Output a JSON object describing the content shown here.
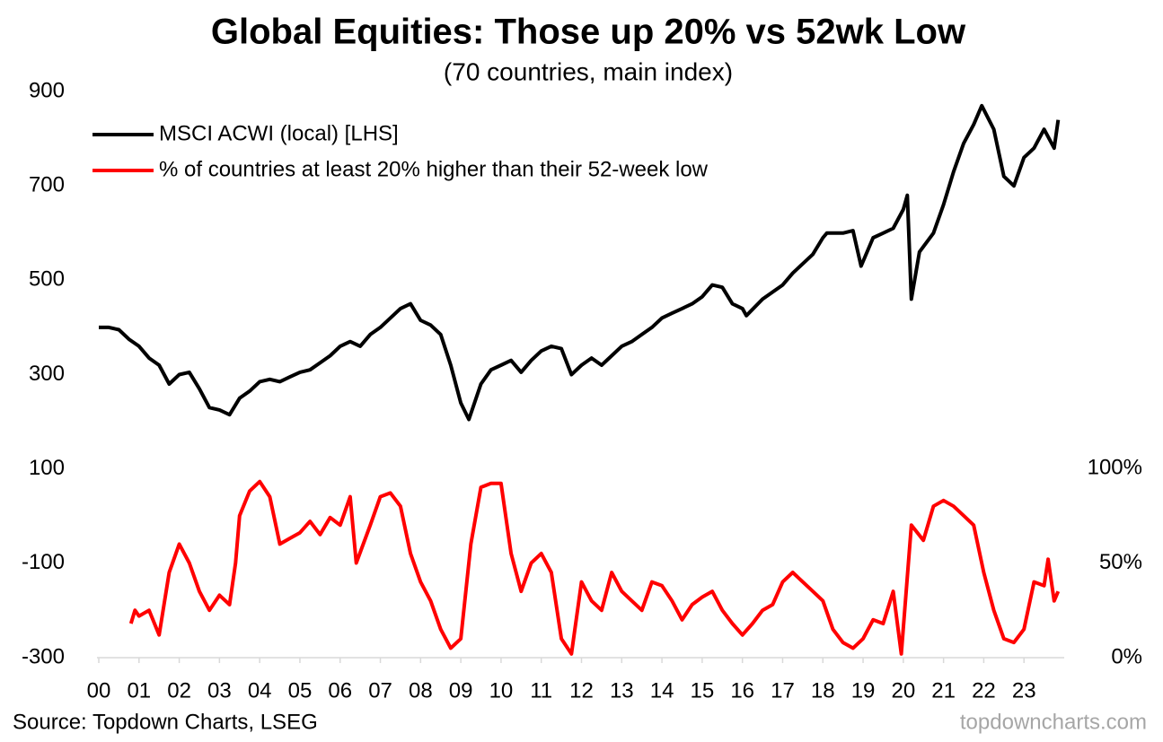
{
  "chart_data": {
    "type": "line",
    "title": "Global Equities: Those up 20% vs 52wk Low",
    "subtitle": "(70 countries, main index)",
    "source": "Source: Topdown Charts, LSEG",
    "watermark": "topdowncharts.com",
    "legend": "top-left",
    "xlim": [
      2000,
      2024
    ],
    "xticks": [
      {
        "value": 2000,
        "label": "00"
      },
      {
        "value": 2001,
        "label": "01"
      },
      {
        "value": 2002,
        "label": "02"
      },
      {
        "value": 2003,
        "label": "03"
      },
      {
        "value": 2004,
        "label": "04"
      },
      {
        "value": 2005,
        "label": "05"
      },
      {
        "value": 2006,
        "label": "06"
      },
      {
        "value": 2007,
        "label": "07"
      },
      {
        "value": 2008,
        "label": "08"
      },
      {
        "value": 2009,
        "label": "09"
      },
      {
        "value": 2010,
        "label": "10"
      },
      {
        "value": 2011,
        "label": "11"
      },
      {
        "value": 2012,
        "label": "12"
      },
      {
        "value": 2013,
        "label": "13"
      },
      {
        "value": 2014,
        "label": "14"
      },
      {
        "value": 2015,
        "label": "15"
      },
      {
        "value": 2016,
        "label": "16"
      },
      {
        "value": 2017,
        "label": "17"
      },
      {
        "value": 2018,
        "label": "18"
      },
      {
        "value": 2019,
        "label": "19"
      },
      {
        "value": 2020,
        "label": "20"
      },
      {
        "value": 2021,
        "label": "21"
      },
      {
        "value": 2022,
        "label": "22"
      },
      {
        "value": 2023,
        "label": "23"
      }
    ],
    "ylim": [
      -300,
      900
    ],
    "yticks": [
      -300,
      -100,
      100,
      300,
      500,
      700,
      900
    ],
    "y2lim": [
      0,
      299
    ],
    "y2ticks": [
      {
        "value": 0,
        "label": "0%"
      },
      {
        "value": 50,
        "label": "50%"
      },
      {
        "value": 100,
        "label": "100%"
      }
    ],
    "series": [
      {
        "name": "MSCI ACWI (local) [LHS]",
        "color": "#000000",
        "axis": "y",
        "x": [
          2000,
          2000.25,
          2000.5,
          2000.75,
          2001,
          2001.25,
          2001.5,
          2001.75,
          2002,
          2002.25,
          2002.5,
          2002.75,
          2003,
          2003.25,
          2003.5,
          2003.75,
          2004,
          2004.25,
          2004.5,
          2004.75,
          2005,
          2005.25,
          2005.5,
          2005.75,
          2006,
          2006.25,
          2006.5,
          2006.75,
          2007,
          2007.25,
          2007.5,
          2007.75,
          2008,
          2008.25,
          2008.5,
          2008.75,
          2009,
          2009.2,
          2009.5,
          2009.75,
          2010,
          2010.25,
          2010.5,
          2010.75,
          2011,
          2011.25,
          2011.5,
          2011.75,
          2012,
          2012.25,
          2012.5,
          2012.75,
          2013,
          2013.25,
          2013.5,
          2013.75,
          2014,
          2014.25,
          2014.5,
          2014.75,
          2015,
          2015.25,
          2015.5,
          2015.75,
          2016,
          2016.1,
          2016.5,
          2016.75,
          2017,
          2017.25,
          2017.5,
          2017.75,
          2018,
          2018.1,
          2018.5,
          2018.75,
          2018.95,
          2019.25,
          2019.5,
          2019.75,
          2020,
          2020.1,
          2020.2,
          2020.4,
          2020.75,
          2021,
          2021.25,
          2021.5,
          2021.75,
          2021.95,
          2022.25,
          2022.5,
          2022.75,
          2023,
          2023.25,
          2023.5,
          2023.75,
          2023.85
        ],
        "values": [
          400,
          400,
          395,
          375,
          360,
          335,
          320,
          280,
          300,
          305,
          270,
          230,
          225,
          215,
          250,
          265,
          285,
          290,
          285,
          295,
          305,
          310,
          325,
          340,
          360,
          370,
          360,
          385,
          400,
          420,
          440,
          450,
          415,
          405,
          385,
          320,
          240,
          205,
          280,
          310,
          320,
          330,
          305,
          330,
          350,
          360,
          355,
          300,
          320,
          335,
          320,
          340,
          360,
          370,
          385,
          400,
          420,
          430,
          440,
          450,
          465,
          490,
          485,
          450,
          440,
          425,
          460,
          475,
          490,
          515,
          535,
          555,
          590,
          600,
          600,
          605,
          530,
          590,
          600,
          610,
          650,
          680,
          460,
          560,
          600,
          660,
          730,
          790,
          830,
          870,
          820,
          720,
          700,
          760,
          780,
          820,
          780,
          840
        ]
      },
      {
        "name": "% of countries at least 20% higher than their 52-week low",
        "color": "#ff0000",
        "axis": "y2",
        "x": [
          2000.8,
          2000.9,
          2001,
          2001.25,
          2001.5,
          2001.75,
          2002,
          2002.25,
          2002.5,
          2002.75,
          2003,
          2003.25,
          2003.4,
          2003.5,
          2003.75,
          2004,
          2004.25,
          2004.5,
          2004.75,
          2005,
          2005.25,
          2005.5,
          2005.75,
          2006,
          2006.25,
          2006.4,
          2006.75,
          2007,
          2007.25,
          2007.5,
          2007.75,
          2008,
          2008.25,
          2008.5,
          2008.75,
          2009,
          2009.25,
          2009.5,
          2009.75,
          2010,
          2010.25,
          2010.5,
          2010.75,
          2011,
          2011.25,
          2011.5,
          2011.75,
          2012,
          2012.25,
          2012.5,
          2012.75,
          2013,
          2013.25,
          2013.5,
          2013.75,
          2014,
          2014.25,
          2014.5,
          2014.75,
          2015,
          2015.25,
          2015.5,
          2015.75,
          2016,
          2016.25,
          2016.5,
          2016.75,
          2017,
          2017.25,
          2017.5,
          2017.75,
          2018,
          2018.25,
          2018.5,
          2018.75,
          2019,
          2019.25,
          2019.5,
          2019.75,
          2019.95,
          2020.2,
          2020.5,
          2020.75,
          2021,
          2021.25,
          2021.5,
          2021.75,
          2022,
          2022.25,
          2022.5,
          2022.75,
          2023,
          2023.25,
          2023.5,
          2023.6,
          2023.75,
          2023.85
        ],
        "values": [
          18,
          25,
          22,
          25,
          12,
          45,
          60,
          50,
          35,
          25,
          33,
          28,
          50,
          75,
          88,
          93,
          85,
          60,
          63,
          66,
          72,
          65,
          74,
          70,
          85,
          50,
          70,
          85,
          87,
          80,
          55,
          40,
          30,
          15,
          5,
          10,
          60,
          90,
          92,
          92,
          55,
          35,
          50,
          55,
          45,
          10,
          2,
          40,
          30,
          25,
          45,
          35,
          30,
          25,
          40,
          38,
          30,
          20,
          28,
          32,
          35,
          25,
          18,
          12,
          18,
          25,
          28,
          40,
          45,
          40,
          35,
          30,
          15,
          8,
          5,
          10,
          20,
          18,
          35,
          2,
          70,
          62,
          80,
          83,
          80,
          75,
          70,
          45,
          25,
          10,
          8,
          15,
          40,
          38,
          52,
          30,
          35
        ]
      }
    ]
  }
}
